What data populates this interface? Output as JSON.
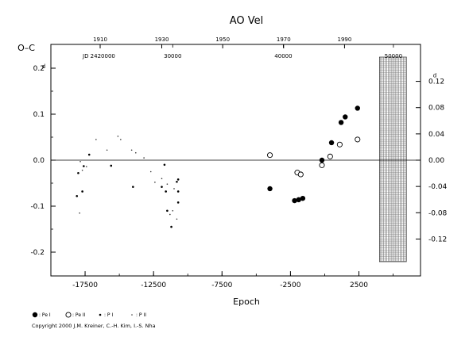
{
  "chart_data": {
    "type": "scatter",
    "title": "AO Vel",
    "xlabel": "Epoch",
    "ylabel": "O–C",
    "xlim": [
      -20000,
      7000
    ],
    "ylim": [
      -0.2,
      0.2
    ],
    "y2lim": [
      -0.14,
      0.14
    ],
    "grid": false,
    "zero_line": true,
    "bottom_ticks": [
      "-17500",
      "-12500",
      "-7500",
      "-2500",
      "2500"
    ],
    "bottom_tick_values": [
      -17500,
      -12500,
      -7500,
      -2500,
      2500
    ],
    "left_ticks": [
      "0.2",
      "0.1",
      "0.0",
      "-0.1",
      "-0.2"
    ],
    "left_tick_values": [
      0.2,
      0.1,
      0.0,
      -0.1,
      -0.2
    ],
    "left_unit_sup": "d",
    "right_ticks": [
      "0.12",
      "0.08",
      "0.04",
      "0.00",
      "-0.04",
      "-0.08",
      "-0.12"
    ],
    "right_tick_values": [
      0.12,
      0.08,
      0.04,
      0.0,
      -0.04,
      -0.08,
      -0.12
    ],
    "right_unit_sup": "d",
    "top_year_ticks": [
      "1910",
      "1930",
      "1950",
      "1970",
      "1990"
    ],
    "top_year_epochs": [
      -16400,
      -11900,
      -7450,
      -3000,
      1450
    ],
    "top_jd_prefix": "JD 2420000",
    "top_jd_ticks": [
      "30000",
      "40000",
      "50000"
    ],
    "top_jd_epochs": [
      -11100,
      -3020,
      5020
    ],
    "hatched_region_from_epoch": 4000,
    "series": [
      {
        "name": ": Pe I",
        "marker": "filled-circle",
        "points": [
          [
            -4000,
            -0.062
          ],
          [
            -2200,
            -0.088
          ],
          [
            -1900,
            -0.086
          ],
          [
            -1600,
            -0.083
          ],
          [
            -200,
            0.0
          ],
          [
            500,
            0.038
          ],
          [
            1200,
            0.082
          ],
          [
            1500,
            0.094
          ],
          [
            2400,
            0.113
          ]
        ]
      },
      {
        "name": ": Pe II",
        "marker": "open-circle",
        "points": [
          [
            -4000,
            0.011
          ],
          [
            -2000,
            -0.027
          ],
          [
            -1750,
            -0.031
          ],
          [
            -200,
            -0.011
          ],
          [
            400,
            0.008
          ],
          [
            1100,
            0.034
          ],
          [
            2400,
            0.045
          ]
        ]
      },
      {
        "name": ": P I",
        "marker": "small-dot",
        "points": [
          [
            -18100,
            -0.078
          ],
          [
            -18000,
            -0.028
          ],
          [
            -17700,
            -0.068
          ],
          [
            -17600,
            -0.013
          ],
          [
            -17200,
            0.012
          ],
          [
            -15600,
            -0.012
          ],
          [
            -14000,
            -0.058
          ],
          [
            -11900,
            -0.058
          ],
          [
            -11700,
            -0.01
          ],
          [
            -11600,
            -0.068
          ],
          [
            -10700,
            -0.042
          ],
          [
            -10800,
            -0.047
          ],
          [
            -10700,
            -0.068
          ],
          [
            -10700,
            -0.092
          ],
          [
            -11200,
            -0.145
          ],
          [
            -11500,
            -0.11
          ]
        ]
      },
      {
        "name": ": P II",
        "marker": "tiny-dot",
        "points": [
          [
            -17900,
            -0.115
          ],
          [
            -17700,
            -0.022
          ],
          [
            -17400,
            -0.014
          ],
          [
            -17850,
            -0.003
          ],
          [
            -16700,
            0.045
          ],
          [
            -15900,
            0.022
          ],
          [
            -15100,
            0.052
          ],
          [
            -14900,
            0.045
          ],
          [
            -14100,
            0.022
          ],
          [
            -13800,
            0.016
          ],
          [
            -13200,
            0.005
          ],
          [
            -12700,
            -0.025
          ],
          [
            -12400,
            -0.048
          ],
          [
            -11900,
            -0.04
          ],
          [
            -11500,
            -0.052
          ],
          [
            -11300,
            -0.118
          ],
          [
            -11100,
            -0.11
          ],
          [
            -10800,
            -0.128
          ],
          [
            -11000,
            -0.062
          ]
        ]
      }
    ]
  },
  "copyright": "Copyright 2000 J.M. Kreiner, C.-H. Kim, I.-S. Nha"
}
